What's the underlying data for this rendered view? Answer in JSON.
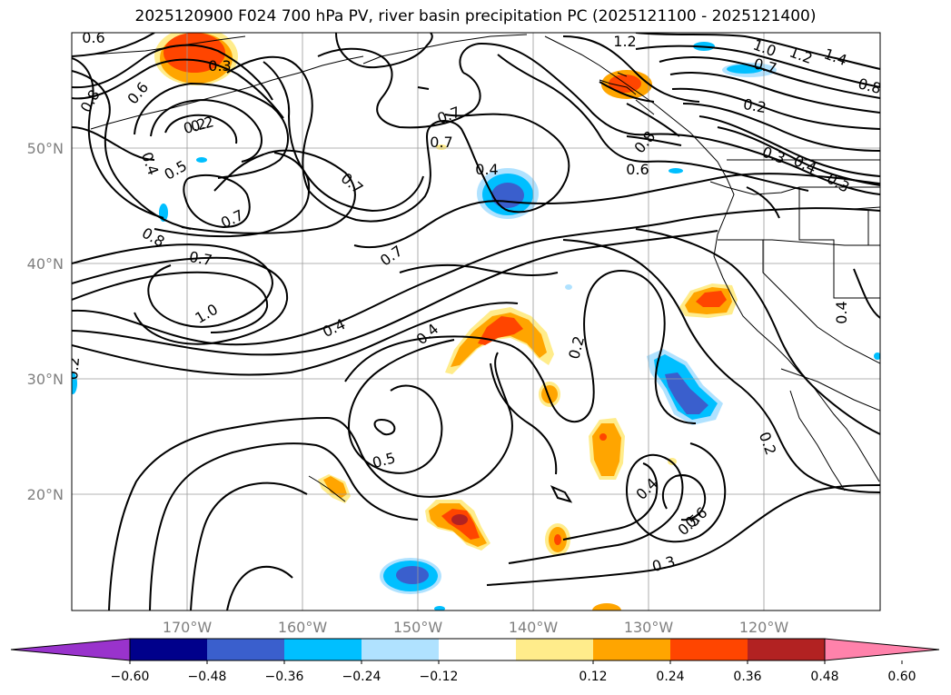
{
  "title": "2025120900 F024 700 hPa PV, river basin precipitation PC (2025121100 - 2025121400)",
  "axes": {
    "lat_labels": [
      "50°N",
      "40°N",
      "30°N",
      "20°N"
    ],
    "lon_labels": [
      "170°W",
      "160°W",
      "150°W",
      "140°W",
      "130°W",
      "120°W"
    ]
  },
  "contour_labels": [
    "0.6",
    "0.3",
    "0.8",
    "0.6",
    "0.2",
    "0.4",
    "0.5",
    "0.7",
    "0.7",
    "0.7",
    "0.8",
    "0.7",
    "1.0",
    "0.7",
    "0.7",
    "0.4",
    "1.2",
    "1.0",
    "0.7",
    "1.4",
    "1.2",
    "0.8",
    "0.2",
    "0.8",
    "0.6",
    "0.3",
    "0.4",
    "0.3",
    "0.4",
    "0.4",
    "0.2",
    "0.2",
    "0.5",
    "0.2",
    "0.4",
    "0.6",
    "0.5",
    "0.3",
    "0.2",
    "0.4"
  ],
  "colorbar": {
    "ticks": [
      "−0.60",
      "−0.48",
      "−0.36",
      "−0.24",
      "−0.12",
      "0.12",
      "0.24",
      "0.36",
      "0.48",
      "0.60"
    ],
    "colors": {
      "lt_-0.60": "#9933cc",
      "-0.60_-0.48": "#00008b",
      "-0.48_-0.36": "#3a5fcd",
      "-0.36_-0.24": "#00bfff",
      "-0.24_-0.12": "#b0e2ff",
      "-0.12_0.12": "#ffffff",
      "0.12_0.24": "#ffec8b",
      "0.24_0.36": "#ffa500",
      "0.36_0.48": "#ff4500",
      "0.48_0.60": "#b22222",
      "gt_0.60": "#ff82ab"
    }
  }
}
